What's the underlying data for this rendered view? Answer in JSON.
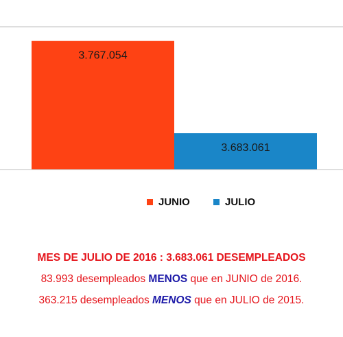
{
  "chart_data": {
    "type": "bar",
    "categories": [
      "JUNIO",
      "JULIO"
    ],
    "values": [
      3767054,
      3683061
    ],
    "value_labels": [
      "3.767.054",
      "3.683.061"
    ],
    "colors": [
      "#fe4214",
      "#1a86c8"
    ],
    "ylim": [
      3650000,
      3780000
    ],
    "grid": false,
    "legend": "bottom-center"
  },
  "legend": {
    "items": [
      {
        "label": "JUNIO",
        "color": "#fe4214"
      },
      {
        "label": "JULIO",
        "color": "#1a86c8"
      }
    ]
  },
  "notes": {
    "line1": "MES DE JULIO DE 2016 : 3.683.061 DESEMPLEADOS",
    "line2_pre": "83.993 desempleados ",
    "line2_menos": "MENOS",
    "line2_post": " que en JUNIO de 2016.",
    "line3_pre": "363.215 desempleados ",
    "line3_menos": "MENOS",
    "line3_post": " que en JULIO de 2015."
  },
  "colors": {
    "red_text": "#e5141b",
    "blue_text": "#1d1aa8",
    "axis_line": "#bdbdbd"
  }
}
